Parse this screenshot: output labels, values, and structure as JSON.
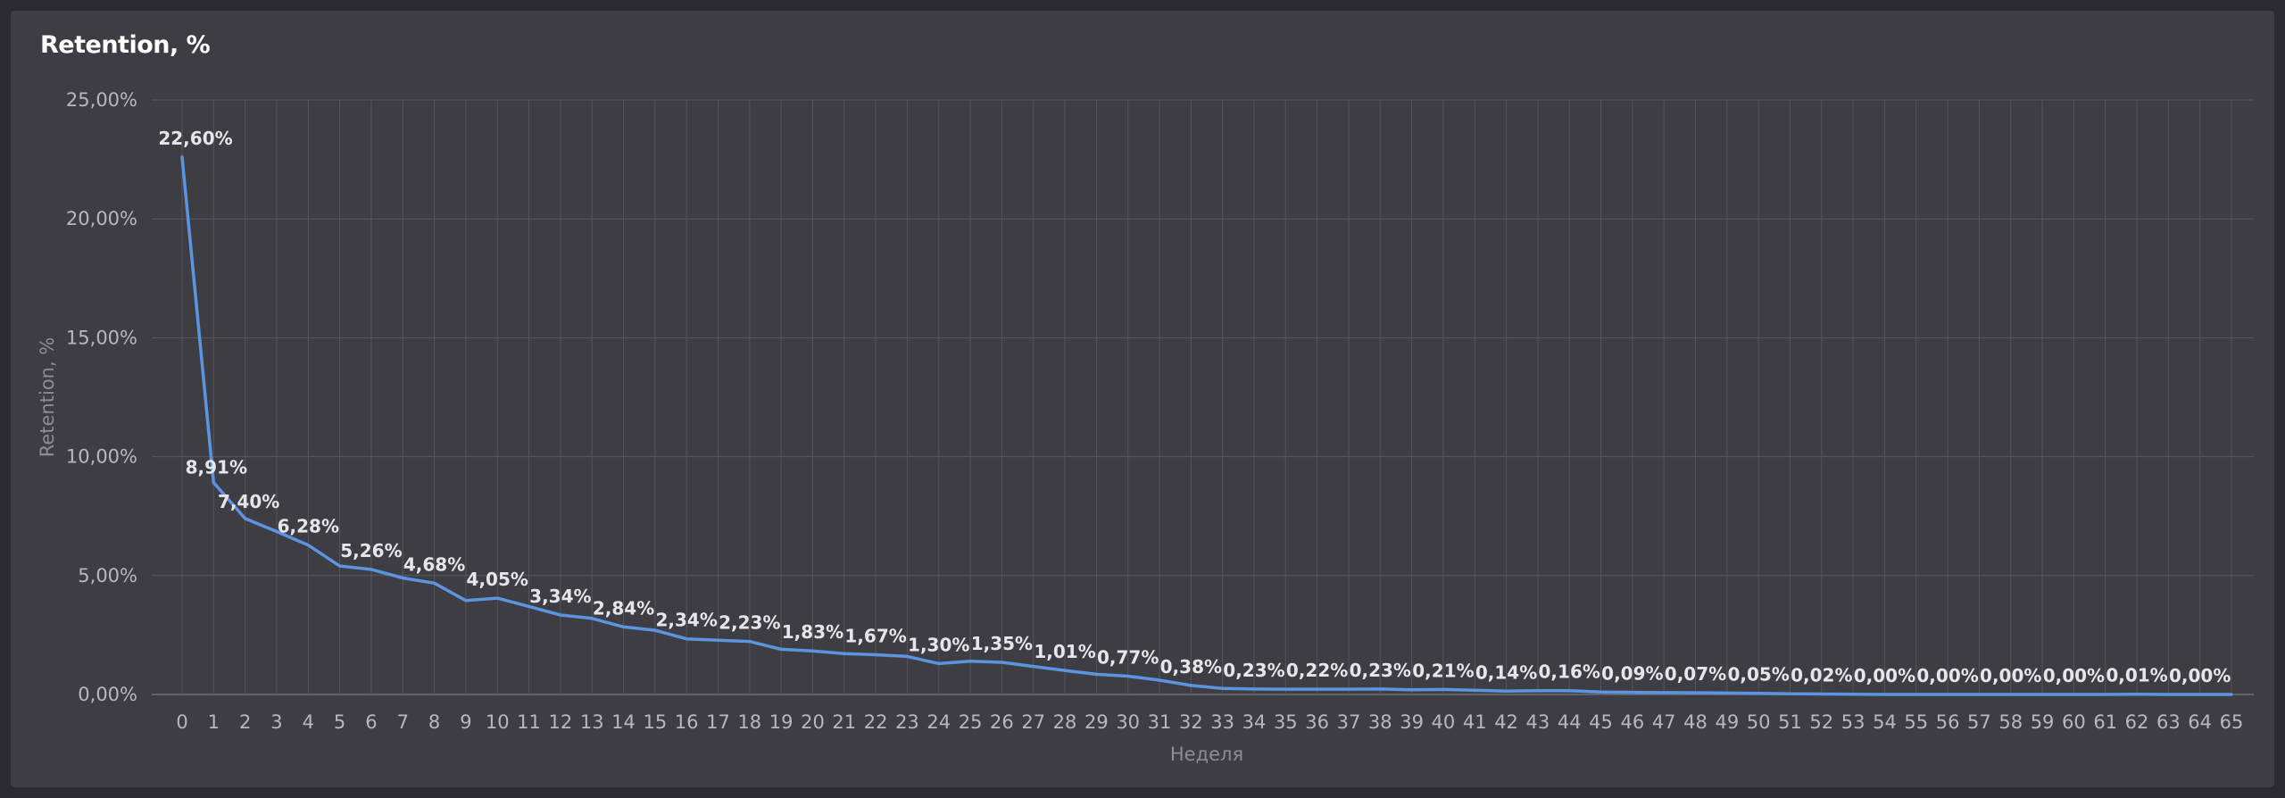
{
  "chart_data": {
    "type": "line",
    "title": "Retention, %",
    "xlabel": "Неделя",
    "ylabel": "Retention, %",
    "ylim": [
      0,
      25
    ],
    "y_ticks": [
      "0,00%",
      "5,00%",
      "10,00%",
      "15,00%",
      "20,00%",
      "25,00%"
    ],
    "y_tick_values": [
      0,
      5,
      10,
      15,
      20,
      25
    ],
    "grid": true,
    "legend": "none",
    "line_color": "#5b95e0",
    "x": [
      0,
      1,
      2,
      3,
      4,
      5,
      6,
      7,
      8,
      9,
      10,
      11,
      12,
      13,
      14,
      15,
      16,
      17,
      18,
      19,
      20,
      21,
      22,
      23,
      24,
      25,
      26,
      27,
      28,
      29,
      30,
      31,
      32,
      33,
      34,
      35,
      36,
      37,
      38,
      39,
      40,
      41,
      42,
      43,
      44,
      45,
      46,
      47,
      48,
      49,
      50,
      51,
      52,
      53,
      54,
      55,
      56,
      57,
      58,
      59,
      60,
      61,
      62,
      63,
      64,
      65
    ],
    "series": [
      {
        "values": [
          22.6,
          8.91,
          7.4,
          6.85,
          6.28,
          5.4,
          5.26,
          4.9,
          4.68,
          3.95,
          4.05,
          3.7,
          3.34,
          3.2,
          2.84,
          2.7,
          2.34,
          2.28,
          2.23,
          1.9,
          1.83,
          1.72,
          1.67,
          1.6,
          1.3,
          1.4,
          1.35,
          1.18,
          1.01,
          0.85,
          0.77,
          0.6,
          0.38,
          0.25,
          0.23,
          0.22,
          0.22,
          0.22,
          0.23,
          0.2,
          0.21,
          0.18,
          0.14,
          0.16,
          0.16,
          0.1,
          0.09,
          0.08,
          0.07,
          0.06,
          0.05,
          0.03,
          0.02,
          0.01,
          0.0,
          0.0,
          0.0,
          0.0,
          0.0,
          0.0,
          0.0,
          0.0,
          0.01,
          0.0,
          0.0,
          0.0
        ]
      }
    ],
    "data_labels": [
      {
        "x": 0,
        "text": "22,60%"
      },
      {
        "x": 1,
        "text": "8,91%"
      },
      {
        "x": 2,
        "text": "7,40%"
      },
      {
        "x": 4,
        "text": "6,28%"
      },
      {
        "x": 6,
        "text": "5,26%"
      },
      {
        "x": 8,
        "text": "4,68%"
      },
      {
        "x": 10,
        "text": "4,05%"
      },
      {
        "x": 12,
        "text": "3,34%"
      },
      {
        "x": 14,
        "text": "2,84%"
      },
      {
        "x": 16,
        "text": "2,34%"
      },
      {
        "x": 18,
        "text": "2,23%"
      },
      {
        "x": 20,
        "text": "1,83%"
      },
      {
        "x": 22,
        "text": "1,67%"
      },
      {
        "x": 24,
        "text": "1,30%"
      },
      {
        "x": 26,
        "text": "1,35%"
      },
      {
        "x": 28,
        "text": "1,01%"
      },
      {
        "x": 30,
        "text": "0,77%"
      },
      {
        "x": 32,
        "text": "0,38%"
      },
      {
        "x": 34,
        "text": "0,23%"
      },
      {
        "x": 36,
        "text": "0,22%"
      },
      {
        "x": 38,
        "text": "0,23%"
      },
      {
        "x": 40,
        "text": "0,21%"
      },
      {
        "x": 42,
        "text": "0,14%"
      },
      {
        "x": 44,
        "text": "0,16%"
      },
      {
        "x": 46,
        "text": "0,09%"
      },
      {
        "x": 48,
        "text": "0,07%"
      },
      {
        "x": 50,
        "text": "0,05%"
      },
      {
        "x": 52,
        "text": "0,02%"
      },
      {
        "x": 54,
        "text": "0,00%"
      },
      {
        "x": 56,
        "text": "0,00%"
      },
      {
        "x": 58,
        "text": "0,00%"
      },
      {
        "x": 60,
        "text": "0,00%"
      },
      {
        "x": 62,
        "text": "0,01%"
      },
      {
        "x": 64,
        "text": "0,00%"
      }
    ]
  }
}
